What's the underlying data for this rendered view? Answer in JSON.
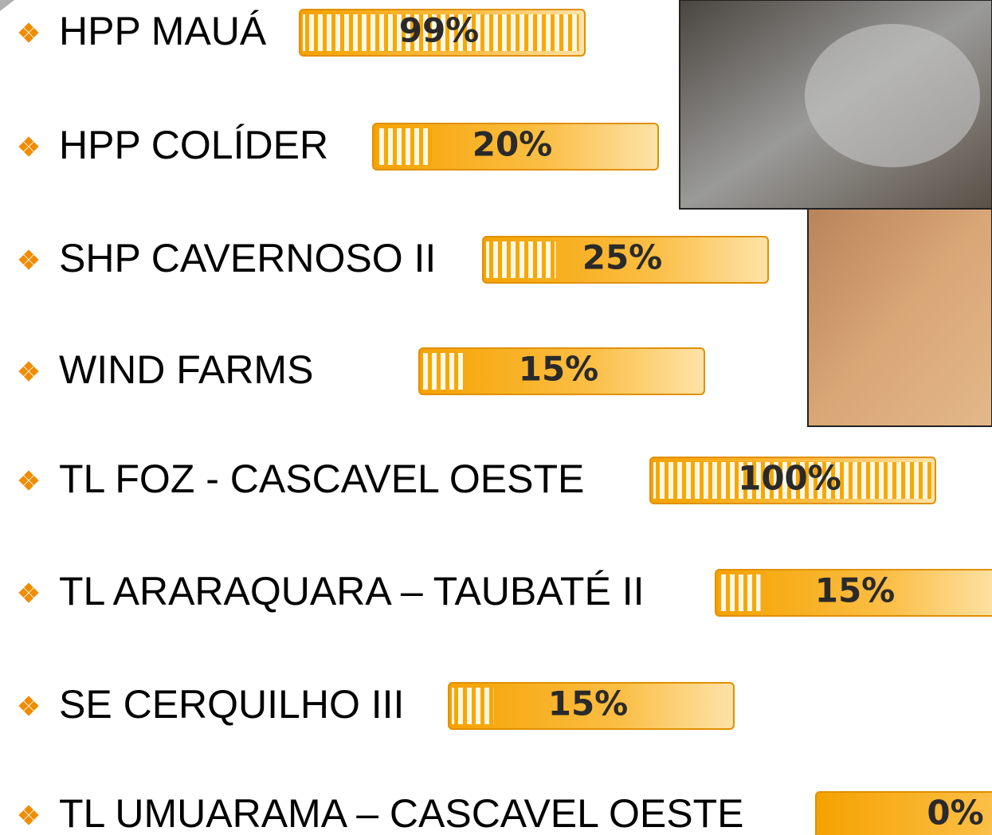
{
  "items": [
    {
      "name": "HPP MAUÁ",
      "progress": 99,
      "progress_label": "99%"
    },
    {
      "name": "HPP COLÍDER",
      "progress": 20,
      "progress_label": "20%"
    },
    {
      "name": "SHP CAVERNOSO II",
      "progress": 25,
      "progress_label": "25%"
    },
    {
      "name": "WIND FARMS",
      "progress": 15,
      "progress_label": "15%"
    },
    {
      "name": "TL FOZ - CASCAVEL OESTE",
      "progress": 100,
      "progress_label": "100%"
    },
    {
      "name": "TL ARARAQUARA – TAUBATÉ II",
      "progress": 15,
      "progress_label": "15%"
    },
    {
      "name": "SE CERQUILHO III",
      "progress": 15,
      "progress_label": "15%"
    },
    {
      "name": "TL UMUARAMA – CASCAVEL OESTE",
      "progress": 0,
      "progress_label": "0%"
    }
  ]
}
